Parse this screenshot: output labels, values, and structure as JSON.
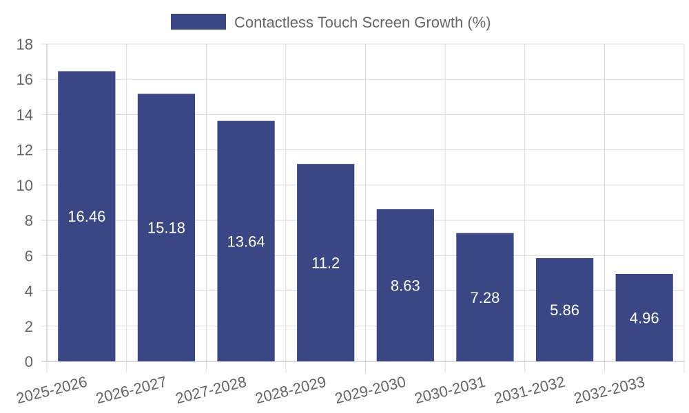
{
  "chart_data": {
    "type": "bar",
    "categories": [
      "2025-2026",
      "2026-2027",
      "2027-2028",
      "2028-2029",
      "2029-2030",
      "2030-2031",
      "2031-2032",
      "2032-2033"
    ],
    "series": [
      {
        "name": "Contactless Touch Screen Growth (%)",
        "values": [
          16.46,
          15.18,
          13.64,
          11.2,
          8.63,
          7.28,
          5.86,
          4.96
        ],
        "color": "#3a4784"
      }
    ],
    "data_labels": [
      "16.46",
      "15.18",
      "13.64",
      "11.2",
      "8.63",
      "7.28",
      "5.86",
      "4.96"
    ],
    "y_ticks": [
      "0",
      "2",
      "4",
      "6",
      "8",
      "10",
      "12",
      "14",
      "16",
      "18"
    ],
    "ylim": [
      0,
      18
    ],
    "grid": true,
    "legend_position": "top-center"
  }
}
